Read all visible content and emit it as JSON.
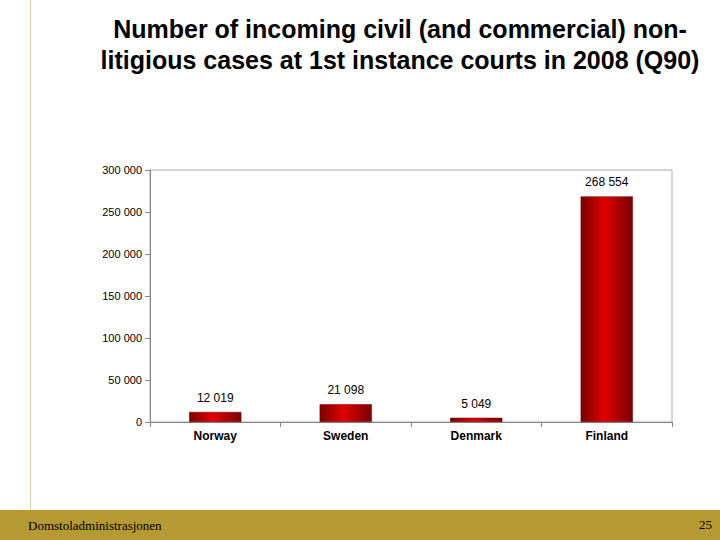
{
  "chart_data": {
    "type": "bar",
    "title": "Number of incoming civil (and commercial) non-litigious cases at 1st instance courts in 2008 (Q90)",
    "categories": [
      "Norway",
      "Sweden",
      "Denmark",
      "Finland"
    ],
    "values": [
      12019,
      21098,
      5049,
      268554
    ],
    "value_labels": [
      "12 019",
      "21 098",
      "5 049",
      "268 554"
    ],
    "color": "#e00000",
    "ylim": [
      0,
      300000
    ],
    "yticks": [
      0,
      {
        "value": 50000,
        "label": "50 000"
      },
      {
        "value": 100000,
        "label": "100 000"
      },
      {
        "value": 150000,
        "label": "150 000"
      },
      {
        "value": 200000,
        "label": "200 000"
      },
      {
        "value": 250000,
        "label": "250 000"
      },
      {
        "value": 300000,
        "label": "300 000"
      }
    ],
    "grid": false,
    "data_labels": true
  },
  "footer": {
    "left": "Domstoladministrasjonen",
    "page": 25
  }
}
